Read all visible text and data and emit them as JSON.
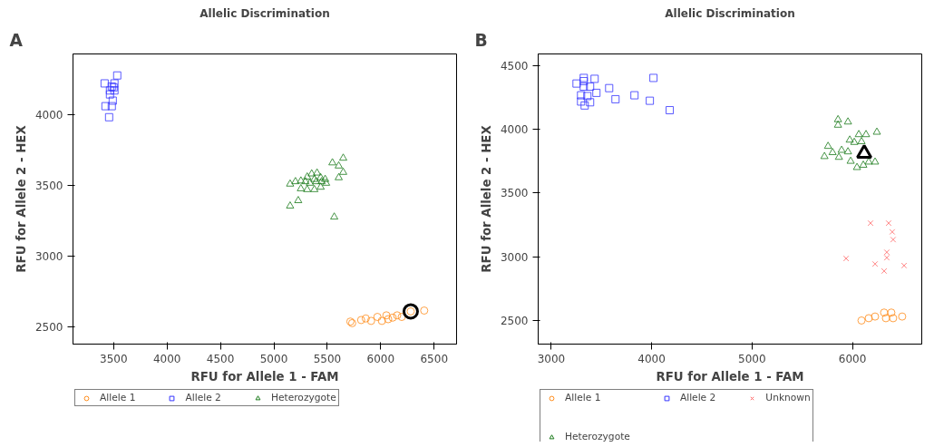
{
  "chart_data": [
    {
      "type": "scatter",
      "title": "Allelic Discrimination",
      "xlabel": "RFU for Allele 1 - FAM",
      "ylabel": "RFU for Allele 2 - HEX",
      "annotations": [
        "A"
      ],
      "xlim": [
        3120,
        6710
      ],
      "ylim": [
        2380,
        4430
      ],
      "xticks": [
        3500,
        4000,
        4500,
        5000,
        5500,
        6000,
        6500
      ],
      "yticks": [
        2500,
        3000,
        3500,
        4000
      ],
      "grid": false,
      "legend": "bottom",
      "series": [
        {
          "name": "Allele 1",
          "color": "#ff8c1a",
          "marker": "circle",
          "x": [
            5716,
            5733,
            5817,
            5860,
            5910,
            5969,
            6011,
            6053,
            6070,
            6112,
            6154,
            6197,
            6281,
            6407
          ],
          "values": [
            2539,
            2528,
            2550,
            2561,
            2544,
            2572,
            2544,
            2583,
            2556,
            2567,
            2583,
            2572,
            2611,
            2617
          ]
        },
        {
          "name": "Allele 2",
          "color": "#3333ff",
          "marker": "square",
          "x": [
            3534,
            3416,
            3508,
            3483,
            3500,
            3466,
            3508,
            3466,
            3492,
            3424,
            3483,
            3458
          ],
          "values": [
            4278,
            4222,
            4222,
            4200,
            4194,
            4172,
            4172,
            4144,
            4100,
            4061,
            4061,
            3983
          ]
        },
        {
          "name": "Heterozygote",
          "color": "#1a7a1a",
          "marker": "triangle",
          "x": [
            5649,
            5548,
            5607,
            5649,
            5607,
            5152,
            5202,
            5253,
            5312,
            5354,
            5404,
            5379,
            5438,
            5480,
            5295,
            5337,
            5396,
            5447,
            5489,
            5253,
            5312,
            5379,
            5438,
            5228,
            5152,
            5565
          ],
          "values": [
            3694,
            3661,
            3639,
            3594,
            3556,
            3511,
            3528,
            3533,
            3561,
            3583,
            3589,
            3544,
            3556,
            3544,
            3528,
            3517,
            3528,
            3528,
            3517,
            3478,
            3472,
            3472,
            3489,
            3394,
            3356,
            3278
          ]
        },
        {
          "color": "#000000",
          "marker": "circle",
          "x": [
            6281
          ],
          "values": [
            2611
          ]
        }
      ]
    },
    {
      "type": "scatter",
      "title": "Allelic Discrimination",
      "xlabel": "RFU for Allele 1 - FAM",
      "ylabel": "RFU for Allele 2 - HEX",
      "annotations": [
        "B"
      ],
      "xlim": [
        2870,
        6690
      ],
      "ylim": [
        2315,
        4590
      ],
      "xticks": [
        3000,
        4000,
        5000,
        6000
      ],
      "yticks": [
        2500,
        3000,
        3500,
        4000,
        4500
      ],
      "grid": false,
      "legend": "bottom",
      "series": [
        {
          "name": "Allele 1",
          "color": "#ff8c1a",
          "marker": "circle",
          "x": [
            6090,
            6162,
            6225,
            6315,
            6333,
            6387,
            6405,
            6495
          ],
          "values": [
            2500,
            2518,
            2531,
            2562,
            2518,
            2562,
            2518,
            2531
          ]
        },
        {
          "name": "Allele 2",
          "color": "#3333ff",
          "marker": "square",
          "x": [
            3324,
            3432,
            3252,
            3324,
            3324,
            3387,
            3577,
            4018,
            3450,
            3297,
            3360,
            3829,
            3640,
            3297,
            3387,
            3333,
            3982,
            4180
          ],
          "values": [
            4402,
            4395,
            4358,
            4377,
            4334,
            4334,
            4322,
            4402,
            4285,
            4266,
            4260,
            4266,
            4235,
            4217,
            4211,
            4186,
            4223,
            4149
          ]
        },
        {
          "name": "Unknown",
          "color": "#ff6666",
          "marker": "cross",
          "x": [
            6180,
            6360,
            6396,
            6405,
            5937,
            6342,
            6342,
            6225,
            6315,
            6514
          ],
          "values": [
            3263,
            3263,
            3195,
            3134,
            2986,
            3035,
            2992,
            2943,
            2888,
            2931
          ]
        },
        {
          "name": "Heterozygote",
          "color": "#1a7a1a",
          "marker": "triangle",
          "x": [
            5856,
            5955,
            5856,
            6243,
            6063,
            6135,
            5973,
            6018,
            6090,
            5757,
            5892,
            5955,
            5802,
            5721,
            5865,
            5982,
            6225,
            6162,
            6045,
            6108
          ],
          "values": [
            4075,
            4057,
            4032,
            3977,
            3958,
            3958,
            3915,
            3897,
            3903,
            3866,
            3835,
            3823,
            3817,
            3786,
            3780,
            3749,
            3743,
            3743,
            3700,
            3718
          ]
        },
        {
          "color": "#000000",
          "marker": "triangle",
          "x": [
            6117
          ],
          "values": [
            3811
          ]
        }
      ]
    }
  ]
}
